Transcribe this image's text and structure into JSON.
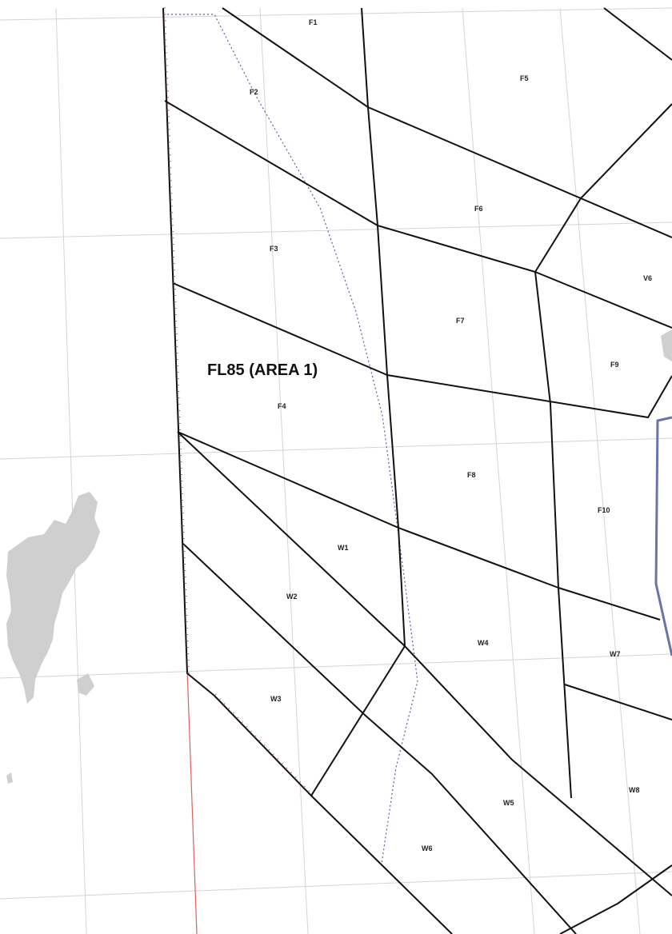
{
  "map": {
    "title": "FL85 (AREA 1)",
    "colors": {
      "background": "#ffffff",
      "grid": "#d4d4d4",
      "sector_border": "#111111",
      "dotted_line": "#5a5fa0",
      "red_boundary": "#e06060",
      "land": "#cfcfcf",
      "highlight_border": "#6a74a8"
    },
    "areas": {
      "F1": "F1",
      "F2": "F2",
      "F3": "F3",
      "F4": "F4",
      "F5": "F5",
      "F6": "F6",
      "F7": "F7",
      "F8": "F8",
      "F9": "F9",
      "F10": "F10",
      "V6": "V6",
      "W1": "W1",
      "W2": "W2",
      "W3": "W3",
      "W4": "W4",
      "W5": "W5",
      "W6": "W6",
      "W7": "W7",
      "W8": "W8"
    }
  }
}
